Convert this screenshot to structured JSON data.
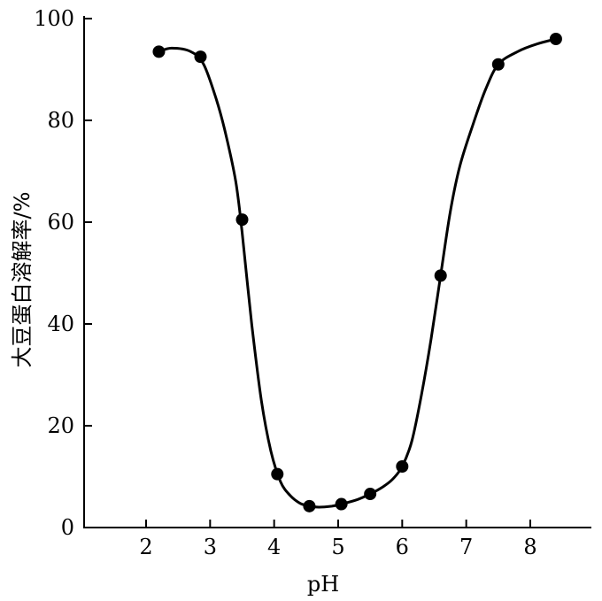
{
  "chart_data": {
    "type": "line",
    "title": "",
    "xlabel": "pH",
    "ylabel": "大豆蛋白溶解率/%",
    "xlim": [
      1,
      9.1
    ],
    "ylim": [
      0,
      100
    ],
    "xticks": [
      2,
      3,
      4,
      5,
      6,
      7,
      8
    ],
    "yticks": [
      0,
      20,
      40,
      60,
      80,
      100
    ],
    "grid": false,
    "legend": "none",
    "series": [
      {
        "marker": "filled-circle",
        "color": "#000000",
        "x": [
          2.2,
          2.85,
          3.5,
          4.05,
          4.55,
          5.05,
          5.5,
          6.0,
          6.6,
          7.5,
          8.4
        ],
        "y": [
          93.5,
          92.5,
          60.5,
          10.5,
          4.2,
          4.6,
          6.6,
          12.0,
          49.5,
          91.0,
          96.0
        ]
      }
    ],
    "curve": {
      "x": [
        2.2,
        2.4,
        2.7,
        2.9,
        3.1,
        3.25,
        3.4,
        3.5,
        3.65,
        3.8,
        3.95,
        4.1,
        4.25,
        4.4,
        4.55,
        4.7,
        4.9,
        5.05,
        5.3,
        5.5,
        5.7,
        5.85,
        6.0,
        6.15,
        6.3,
        6.45,
        6.6,
        6.75,
        6.9,
        7.1,
        7.3,
        7.5,
        7.8,
        8.1,
        8.4
      ],
      "y": [
        93.5,
        94.2,
        93.5,
        91.0,
        84.0,
        77.0,
        68.0,
        58.0,
        40.0,
        25.0,
        15.0,
        9.0,
        6.3,
        4.8,
        4.2,
        4.0,
        4.2,
        4.6,
        5.5,
        6.6,
        8.0,
        9.5,
        12.0,
        17.0,
        26.0,
        37.0,
        49.5,
        62.0,
        71.0,
        79.0,
        86.0,
        91.0,
        93.5,
        95.0,
        96.0
      ]
    }
  }
}
